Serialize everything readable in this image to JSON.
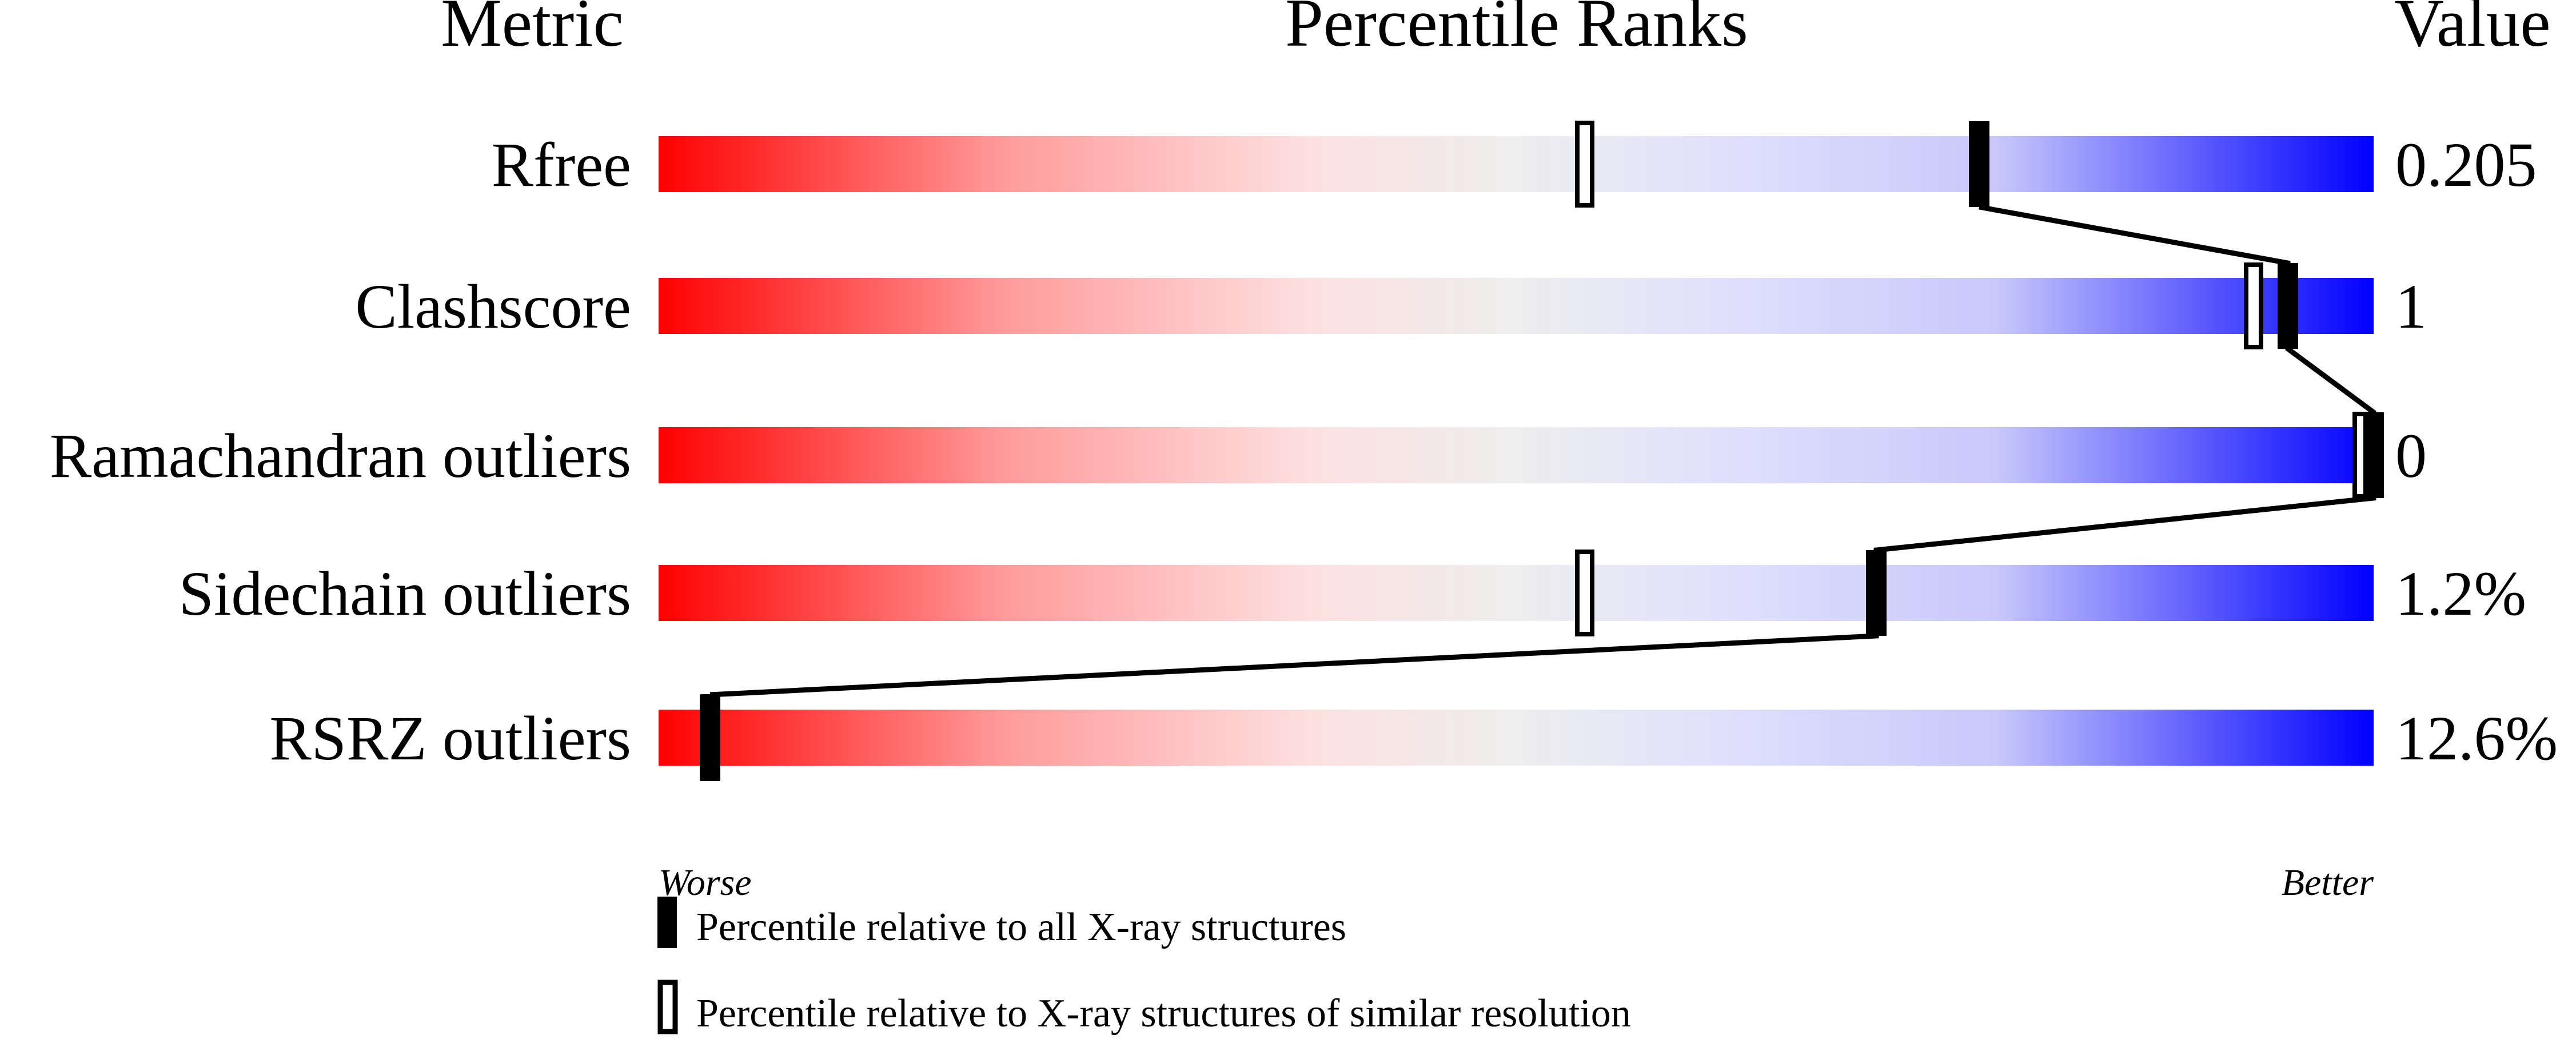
{
  "chart_data": {
    "type": "bar",
    "headers": {
      "metric": "Metric",
      "percentile": "Percentile Ranks",
      "value": "Value"
    },
    "xlim": [
      0,
      100
    ],
    "metrics": [
      {
        "name": "Rfree",
        "value": "0.205",
        "percentile_all": 77,
        "percentile_similar": 54
      },
      {
        "name": "Clashscore",
        "value": "1",
        "percentile_all": 95,
        "percentile_similar": 93
      },
      {
        "name": "Ramachandran outliers",
        "value": "0",
        "percentile_all": 100,
        "percentile_similar": 100
      },
      {
        "name": "Sidechain outliers",
        "value": "1.2%",
        "percentile_all": 71,
        "percentile_similar": 54
      },
      {
        "name": "RSRZ outliers",
        "value": "12.6%",
        "percentile_all": 3,
        "percentile_similar": 3
      }
    ],
    "axis_labels": {
      "left": "Worse",
      "right": "Better"
    },
    "legend": [
      {
        "marker": "filled",
        "label": "Percentile relative to all X-ray structures"
      },
      {
        "marker": "open",
        "label": "Percentile relative to X-ray structures of similar resolution"
      }
    ],
    "colors": {
      "worse": "#ff0000",
      "middle": "#eeeeee",
      "better": "#0000ff",
      "marker": "#000000"
    }
  }
}
